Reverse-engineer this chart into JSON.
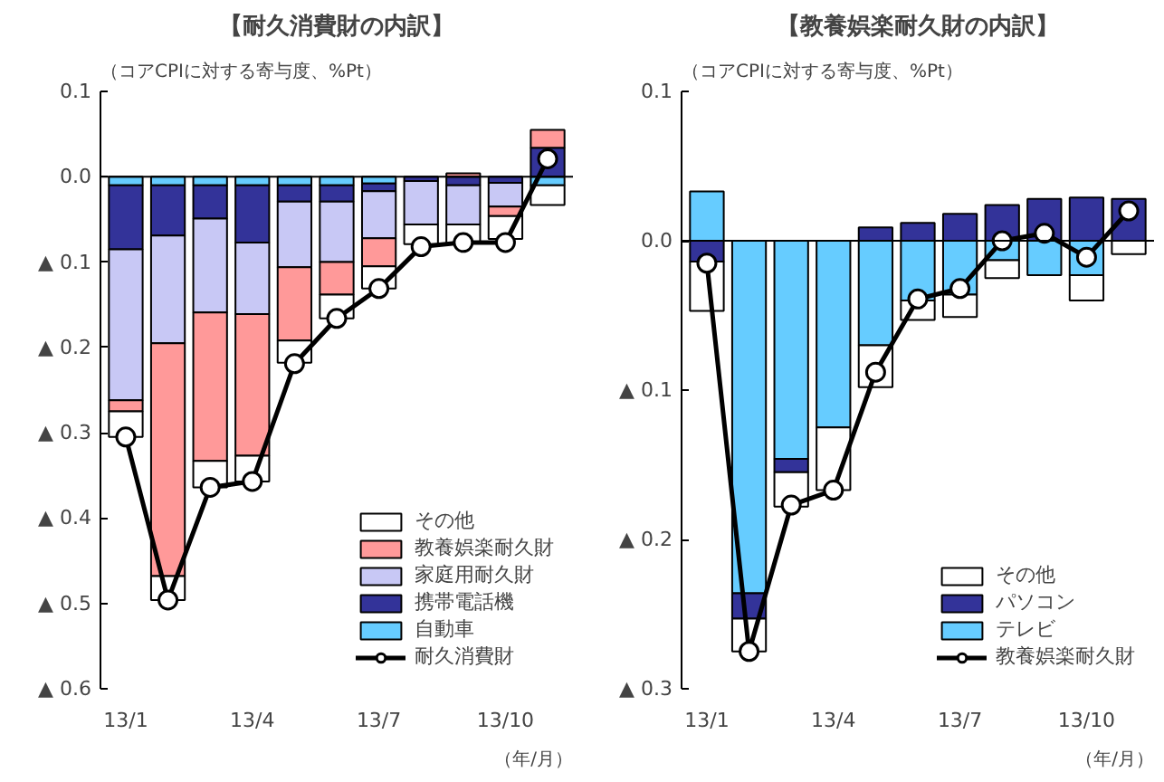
{
  "chart_data": [
    {
      "type": "bar",
      "stacked": true,
      "title": "【耐久消費財の内訳】",
      "subtitle": "（コアCPIに対する寄与度、%Pt）",
      "categories": [
        "13/1",
        null,
        null,
        "13/4",
        null,
        null,
        "13/7",
        null,
        null,
        "13/10",
        null
      ],
      "series": [
        {
          "name": "自動車",
          "color": "#66ccff",
          "values": [
            -0.01,
            -0.01,
            -0.01,
            -0.01,
            -0.01,
            -0.01,
            -0.008,
            null,
            null,
            null,
            -0.01
          ]
        },
        {
          "name": "携帯電話機",
          "color": "#333399",
          "values": [
            -0.075,
            -0.059,
            -0.039,
            -0.067,
            -0.019,
            -0.019,
            -0.009,
            -0.005,
            -0.01,
            -0.007,
            0.034
          ]
        },
        {
          "name": "家庭用耐久財",
          "color": "#c8c8f5",
          "values": [
            -0.177,
            -0.126,
            -0.11,
            -0.084,
            -0.077,
            -0.071,
            -0.055,
            -0.051,
            -0.046,
            -0.028,
            null
          ]
        },
        {
          "name": "教養娯楽耐久財",
          "color": "#ff9999",
          "values": [
            -0.013,
            -0.273,
            -0.174,
            -0.166,
            -0.086,
            -0.038,
            -0.033,
            null,
            0.004,
            -0.011,
            0.021
          ]
        },
        {
          "name": "その他",
          "color": "#ffffff",
          "values": [
            -0.03,
            -0.028,
            -0.031,
            -0.03,
            -0.026,
            -0.028,
            -0.026,
            -0.023,
            -0.022,
            -0.027,
            -0.023
          ]
        },
        {
          "name": "耐久消費財",
          "type": "line",
          "color": "#000000",
          "marker": "circle",
          "values": [
            -0.305,
            -0.496,
            -0.364,
            -0.357,
            -0.219,
            -0.166,
            -0.131,
            -0.082,
            -0.077,
            -0.077,
            0.021
          ]
        }
      ],
      "ylim": [
        -0.6,
        0.1
      ],
      "yticks": [
        {
          "value": 0.1,
          "label": "0.1"
        },
        {
          "value": 0,
          "label": "0.0"
        },
        {
          "value": -0.1,
          "label": "▲ 0.1"
        },
        {
          "value": -0.2,
          "label": "▲ 0.2"
        },
        {
          "value": -0.3,
          "label": "▲ 0.3"
        },
        {
          "value": -0.4,
          "label": "▲ 0.4"
        },
        {
          "value": -0.5,
          "label": "▲ 0.5"
        },
        {
          "value": -0.6,
          "label": "▲ 0.6"
        }
      ],
      "ref_lines": [
        {
          "axis": "y",
          "value": 0,
          "color": "#000000"
        }
      ],
      "legend": "bottom right",
      "grid": false,
      "annotations": [
        "（年/月）"
      ]
    },
    {
      "type": "bar",
      "stacked": true,
      "title": "【教養娯楽耐久財の内訳】",
      "subtitle": "（コアCPIに対する寄与度、%Pt）",
      "categories": [
        "13/1",
        null,
        null,
        "13/4",
        null,
        null,
        "13/7",
        null,
        null,
        "13/10",
        null
      ],
      "series": [
        {
          "name": "テレビ",
          "color": "#66ccff",
          "values": [
            0.033,
            -0.236,
            -0.146,
            -0.125,
            -0.07,
            -0.04,
            -0.036,
            -0.013,
            -0.023,
            -0.023,
            null
          ]
        },
        {
          "name": "パソコン",
          "color": "#333399",
          "values": [
            -0.014,
            -0.017,
            -0.009,
            null,
            0.009,
            0.012,
            0.018,
            0.024,
            0.028,
            0.029,
            0.028
          ]
        },
        {
          "name": "その他",
          "color": "#ffffff",
          "values": [
            -0.033,
            -0.022,
            -0.023,
            -0.042,
            -0.028,
            -0.013,
            -0.015,
            -0.012,
            null,
            -0.017,
            -0.009
          ]
        },
        {
          "name": "教養娯楽耐久財",
          "type": "line",
          "color": "#000000",
          "marker": "circle",
          "values": [
            -0.015,
            -0.275,
            -0.177,
            -0.167,
            -0.088,
            -0.039,
            -0.032,
            0,
            0.005,
            -0.011,
            0.02
          ]
        }
      ],
      "ylim": [
        -0.3,
        0.1
      ],
      "yticks": [
        {
          "value": 0.1,
          "label": "0.1"
        },
        {
          "value": 0,
          "label": "0.0"
        },
        {
          "value": -0.1,
          "label": "▲ 0.1"
        },
        {
          "value": -0.2,
          "label": "▲ 0.2"
        },
        {
          "value": -0.3,
          "label": "▲ 0.3"
        }
      ],
      "ref_lines": [
        {
          "axis": "y",
          "value": 0,
          "color": "#000000"
        }
      ],
      "legend": "bottom right",
      "grid": false,
      "annotations": [
        "（年/月）"
      ]
    }
  ]
}
